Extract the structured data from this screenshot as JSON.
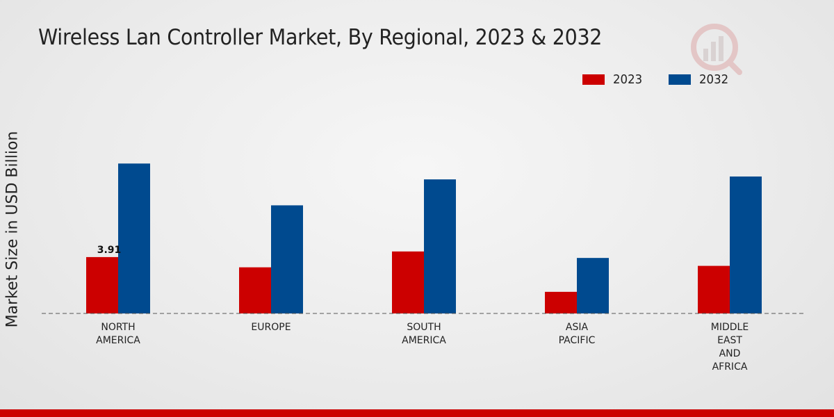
{
  "chart_data": {
    "type": "bar",
    "title": "Wireless Lan Controller Market, By Regional, 2023 & 2032",
    "ylabel": "Market Size in USD Billion",
    "xlabel": "",
    "categories": [
      [
        "NORTH",
        "AMERICA"
      ],
      [
        "EUROPE"
      ],
      [
        "SOUTH",
        "AMERICA"
      ],
      [
        "ASIA",
        "PACIFIC"
      ],
      [
        "MIDDLE",
        "EAST",
        "AND",
        "AFRICA"
      ]
    ],
    "series": [
      {
        "name": "2023",
        "color": "#cc0000",
        "values": [
          3.91,
          3.2,
          4.3,
          1.5,
          3.3
        ]
      },
      {
        "name": "2032",
        "color": "#004a8f",
        "values": [
          10.4,
          7.5,
          9.3,
          3.85,
          9.5
        ]
      }
    ],
    "data_labels": [
      {
        "series": 0,
        "index": 0,
        "text": "3.91"
      }
    ],
    "ylim": [
      0,
      16.2
    ],
    "legend_position": "top-right"
  },
  "colors": {
    "accent_red": "#cc0000",
    "accent_blue": "#004a8f"
  }
}
